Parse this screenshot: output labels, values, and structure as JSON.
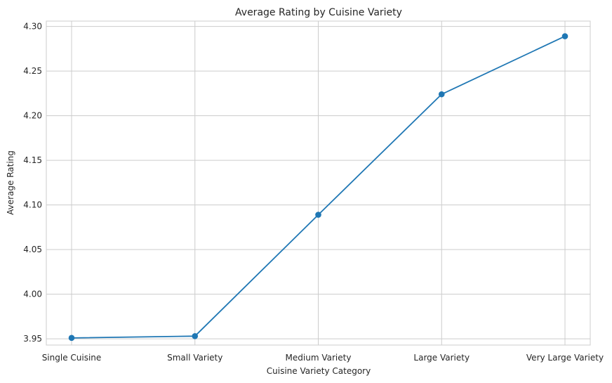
{
  "chart_data": {
    "type": "line",
    "title": "Average Rating by Cuisine Variety",
    "xlabel": "Cuisine Variety Category",
    "ylabel": "Average Rating",
    "categories": [
      "Single Cuisine",
      "Small Variety",
      "Medium Variety",
      "Large Variety",
      "Very Large Variety"
    ],
    "series": [
      {
        "values": [
          3.951,
          3.953,
          4.089,
          4.224,
          4.289
        ],
        "color": "#1f77b4",
        "marker": "circle"
      }
    ],
    "ylim": [
      3.943,
      4.306
    ],
    "yticks": [
      "3.95",
      "4.00",
      "4.05",
      "4.10",
      "4.15",
      "4.20",
      "4.25",
      "4.30"
    ],
    "grid": true
  }
}
